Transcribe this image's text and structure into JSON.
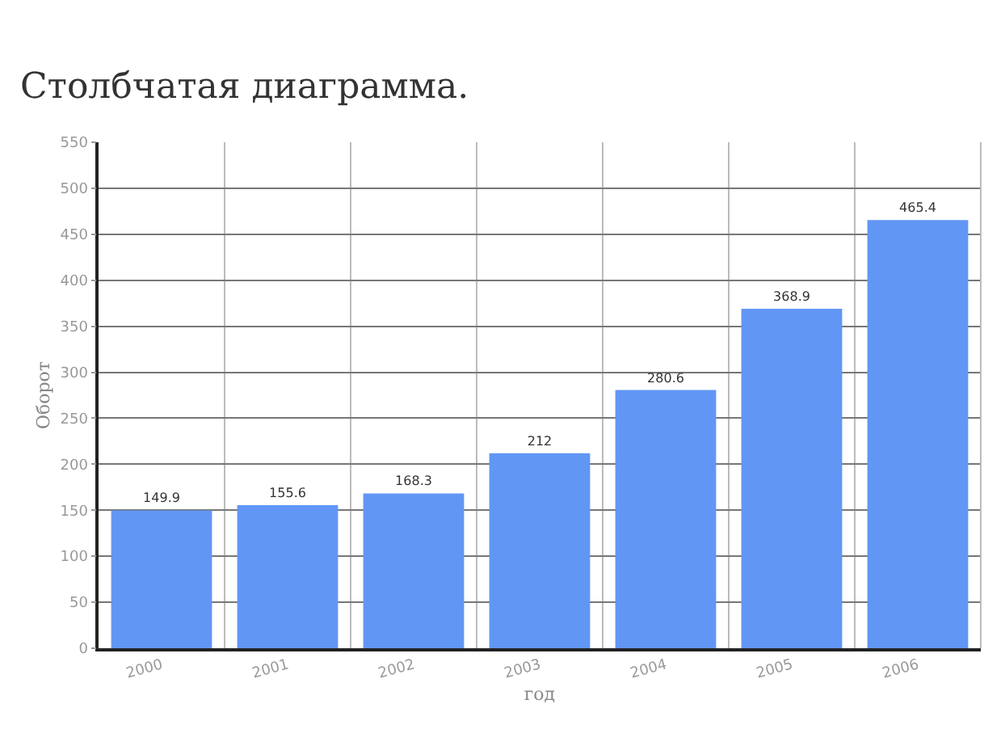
{
  "chart_data": {
    "type": "bar",
    "title": "Столбчатая диаграмма.",
    "xlabel": "год",
    "ylabel": "Оборот",
    "categories": [
      "2000",
      "2001",
      "2002",
      "2003",
      "2004",
      "2005",
      "2006"
    ],
    "values": [
      149.9,
      155.6,
      168.3,
      212,
      280.6,
      368.9,
      465.4
    ],
    "color": "#6196f5",
    "ylim": [
      0,
      550
    ],
    "yticks": [
      0,
      50,
      100,
      150,
      200,
      250,
      300,
      350,
      400,
      450,
      500,
      550
    ],
    "grid": true,
    "data_labels": true
  }
}
